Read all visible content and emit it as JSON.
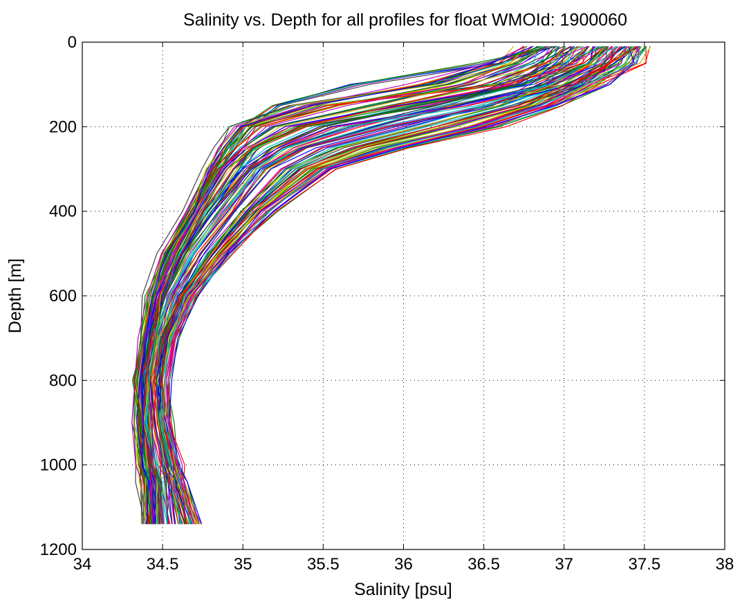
{
  "chart_data": {
    "type": "line",
    "title": "Salinity vs. Depth for all profiles for float WMOId: 1900060",
    "xlabel": "Salinity [psu]",
    "ylabel": "Depth [m]",
    "xlim": [
      34,
      38
    ],
    "ylim": [
      0,
      1200
    ],
    "y_reversed": true,
    "grid": true,
    "legend": "none",
    "x_ticks": [
      "34",
      "34.5",
      "35",
      "35.5",
      "36",
      "36.5",
      "37",
      "37.5",
      "38"
    ],
    "y_ticks": [
      "0",
      "200",
      "400",
      "600",
      "800",
      "1000",
      "1200"
    ],
    "colors": [
      "#0000ff",
      "#ff0000",
      "#008000",
      "#00bfbf",
      "#bf00bf",
      "#bfbf00",
      "#404040"
    ],
    "depth": [
      10,
      50,
      100,
      150,
      200,
      250,
      300,
      400,
      500,
      600,
      700,
      800,
      900,
      1000,
      1040,
      1140
    ],
    "series": [
      {
        "values": [
          37.2,
          37.05,
          36.6,
          35.5,
          35.05,
          34.95,
          34.85,
          34.7,
          34.55,
          34.45,
          34.4,
          34.36,
          34.36,
          34.38,
          34.39,
          34.4
        ]
      },
      {
        "values": [
          37.0,
          36.9,
          36.7,
          36.2,
          35.4,
          35.1,
          35.0,
          34.8,
          34.63,
          34.5,
          34.43,
          34.4,
          34.4,
          34.43,
          34.45,
          34.47
        ]
      },
      {
        "values": [
          37.4,
          37.3,
          37.0,
          36.5,
          36.0,
          35.5,
          35.25,
          35.0,
          34.78,
          34.6,
          34.5,
          34.46,
          34.47,
          34.52,
          34.55,
          34.6
        ]
      },
      {
        "values": [
          37.5,
          37.45,
          37.25,
          36.95,
          36.6,
          36.0,
          35.55,
          35.2,
          34.92,
          34.7,
          34.58,
          34.52,
          34.55,
          34.6,
          34.63,
          34.7
        ]
      },
      {
        "values": [
          36.8,
          36.6,
          36.2,
          35.3,
          34.95,
          34.85,
          34.78,
          34.65,
          34.5,
          34.42,
          34.38,
          34.34,
          34.35,
          34.37,
          34.38,
          34.4
        ]
      },
      {
        "values": [
          37.3,
          37.2,
          36.9,
          36.3,
          35.8,
          35.35,
          35.1,
          34.9,
          34.7,
          34.55,
          34.47,
          34.43,
          34.44,
          34.48,
          34.5,
          34.53
        ]
      },
      {
        "values": [
          37.1,
          36.95,
          36.75,
          36.0,
          35.3,
          35.05,
          34.9,
          34.75,
          34.6,
          34.48,
          34.42,
          34.38,
          34.39,
          34.42,
          34.44,
          34.45
        ]
      },
      {
        "values": [
          37.45,
          37.35,
          37.1,
          36.7,
          36.2,
          35.7,
          35.35,
          35.05,
          34.82,
          34.62,
          34.52,
          34.48,
          34.5,
          34.55,
          34.58,
          34.66
        ]
      },
      {
        "values": [
          36.9,
          36.5,
          35.7,
          35.2,
          35.0,
          34.9,
          34.82,
          34.68,
          34.52,
          34.44,
          34.4,
          34.35,
          34.36,
          34.4,
          34.41,
          34.43
        ]
      },
      {
        "values": [
          37.25,
          37.15,
          36.95,
          36.4,
          35.6,
          35.25,
          35.05,
          34.85,
          34.66,
          34.52,
          34.45,
          34.41,
          34.42,
          34.46,
          34.48,
          34.5
        ]
      },
      {
        "values": [
          37.35,
          37.25,
          37.05,
          36.8,
          36.4,
          35.85,
          35.45,
          35.1,
          34.86,
          34.66,
          34.54,
          34.49,
          34.51,
          34.57,
          34.6,
          34.68
        ]
      },
      {
        "values": [
          36.95,
          36.8,
          36.4,
          35.8,
          35.2,
          35.0,
          34.88,
          34.72,
          34.57,
          34.46,
          34.41,
          34.37,
          34.37,
          34.4,
          34.42,
          34.44
        ]
      },
      {
        "values": [
          37.15,
          37.05,
          36.85,
          36.55,
          35.9,
          35.4,
          35.15,
          34.92,
          34.72,
          34.57,
          34.48,
          34.44,
          34.45,
          34.49,
          34.52,
          34.56
        ]
      },
      {
        "values": [
          37.4,
          37.35,
          37.2,
          36.9,
          36.5,
          35.95,
          35.5,
          35.15,
          34.88,
          34.68,
          34.56,
          34.5,
          34.53,
          34.58,
          34.62,
          34.72
        ]
      },
      {
        "values": [
          37.05,
          36.85,
          36.55,
          35.95,
          35.35,
          35.08,
          34.95,
          34.78,
          34.62,
          34.5,
          34.44,
          34.39,
          34.4,
          34.44,
          34.46,
          34.48
        ]
      },
      {
        "values": [
          37.2,
          37.1,
          36.8,
          36.1,
          35.5,
          35.2,
          35.02,
          34.82,
          34.64,
          34.51,
          34.44,
          34.4,
          34.41,
          34.45,
          34.47,
          34.49
        ]
      },
      {
        "values": [
          37.5,
          37.4,
          37.15,
          36.85,
          36.45,
          35.9,
          35.5,
          35.15,
          34.9,
          34.68,
          34.55,
          34.5,
          34.52,
          34.58,
          34.61,
          34.69
        ]
      },
      {
        "values": [
          36.85,
          36.7,
          36.3,
          35.6,
          35.1,
          34.95,
          34.84,
          34.7,
          34.54,
          34.44,
          34.39,
          34.35,
          34.36,
          34.39,
          34.4,
          34.42
        ]
      },
      {
        "values": [
          37.3,
          37.2,
          36.95,
          36.6,
          36.1,
          35.6,
          35.3,
          35.02,
          34.8,
          34.61,
          34.51,
          34.47,
          34.48,
          34.53,
          34.56,
          34.62
        ]
      },
      {
        "values": [
          37.1,
          37.0,
          36.7,
          36.25,
          35.7,
          35.3,
          35.08,
          34.88,
          34.68,
          34.54,
          34.46,
          34.42,
          34.43,
          34.47,
          34.49,
          34.51
        ]
      },
      {
        "values": [
          36.75,
          36.55,
          36.1,
          35.4,
          35.0,
          34.88,
          34.8,
          34.67,
          34.52,
          34.43,
          34.39,
          34.34,
          34.35,
          34.38,
          34.39,
          34.41
        ]
      },
      {
        "values": [
          37.45,
          37.3,
          37.1,
          36.75,
          36.3,
          35.75,
          35.4,
          35.08,
          34.84,
          34.64,
          34.53,
          34.48,
          34.5,
          34.56,
          34.59,
          34.67
        ]
      }
    ]
  }
}
